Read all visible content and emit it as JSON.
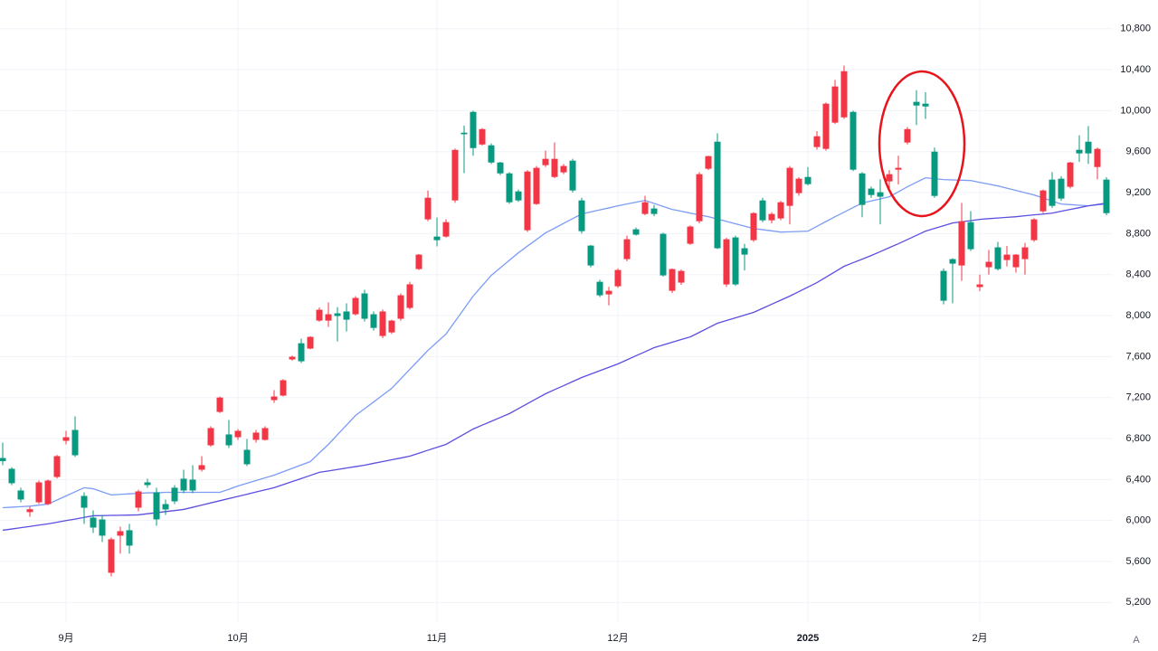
{
  "chart_data": {
    "type": "candlestick",
    "up_color": "#f23645",
    "down_color": "#089981",
    "grid": true,
    "categories": [
      null,
      null,
      null,
      null,
      null,
      null,
      null,
      "9月",
      null,
      null,
      null,
      null,
      null,
      null,
      null,
      null,
      null,
      null,
      null,
      null,
      null,
      null,
      null,
      null,
      null,
      null,
      "10月",
      null,
      null,
      null,
      null,
      null,
      null,
      null,
      null,
      null,
      null,
      null,
      null,
      null,
      null,
      null,
      null,
      null,
      null,
      null,
      null,
      null,
      "11月",
      null,
      null,
      null,
      null,
      null,
      null,
      null,
      null,
      null,
      null,
      null,
      null,
      null,
      null,
      null,
      null,
      null,
      null,
      null,
      "12月",
      null,
      null,
      null,
      null,
      null,
      null,
      null,
      null,
      null,
      null,
      null,
      null,
      null,
      null,
      null,
      null,
      null,
      null,
      null,
      null,
      "2025",
      null,
      null,
      null,
      null,
      null,
      null,
      null,
      null,
      null,
      null,
      null,
      null,
      null,
      null,
      null,
      null,
      null,
      null,
      "2月",
      null,
      null,
      null,
      null,
      null,
      null,
      null,
      null,
      null,
      null,
      null,
      null,
      null,
      null
    ],
    "open": [
      6610,
      6505,
      6293,
      6082,
      6178,
      6160,
      6425,
      6778,
      6884,
      6240,
      6028,
      6010,
      5490,
      5852,
      5905,
      6125,
      6372,
      6275,
      6160,
      6320,
      6408,
      6399,
      6496,
      6734,
      7060,
      6840,
      6813,
      6690,
      6787,
      6787,
      7175,
      7219,
      7572,
      7730,
      7678,
      7951,
      7951,
      8022,
      8040,
      8013,
      8216,
      8013,
      7801,
      7836,
      7969,
      8075,
      8454,
      8939,
      8771,
      8771,
      9124,
      9785,
      9988,
      9670,
      9662,
      9494,
      9388,
      9212,
      8833,
      9089,
      9468,
      9353,
      9398,
      9512,
      9124,
      8683,
      8330,
      8207,
      8286,
      8551,
      8842,
      8992,
      9045,
      8798,
      8242,
      8322,
      8701,
      8921,
      9433,
      9697,
      8304,
      8763,
      8657,
      8736,
      9124,
      8930,
      8948,
      9071,
      9195,
      9353,
      9645,
      9627,
      9883,
      9935,
      9988,
      9388,
      9239,
      9204,
      9310,
      9424,
      9689,
      10086,
      10068,
      9600,
      8436,
      8551,
      8489,
      8912,
      8278,
      8472,
      8666,
      8542,
      8472,
      8551,
      8736,
      9018,
      9327,
      9336,
      9257,
      9618,
      9697,
      9450,
      9327
    ],
    "high": [
      6760,
      6520,
      6320,
      6135,
      6390,
      6400,
      6640,
      6875,
      7016,
      6275,
      6099,
      6055,
      5835,
      5940,
      5967,
      6300,
      6408,
      6320,
      6205,
      6345,
      6496,
      6540,
      6628,
      6920,
      7210,
      6981,
      6893,
      6796,
      6884,
      6920,
      7272,
      7380,
      7610,
      7775,
      7800,
      8080,
      8128,
      8083,
      8119,
      8190,
      8252,
      8040,
      8060,
      7960,
      8216,
      8330,
      8600,
      9220,
      8957,
      8940,
      9630,
      9855,
      10000,
      9830,
      9680,
      9500,
      9400,
      9230,
      9420,
      9460,
      9610,
      9690,
      9480,
      9530,
      9150,
      8690,
      8350,
      8280,
      8460,
      8780,
      8860,
      9170,
      9080,
      8810,
      8460,
      8450,
      8880,
      9400,
      9560,
      9780,
      8760,
      8780,
      8700,
      9010,
      9150,
      9010,
      9120,
      9460,
      9350,
      9450,
      9800,
      10080,
      10300,
      10440,
      10000,
      9400,
      9260,
      9330,
      9420,
      9560,
      9840,
      10200,
      10180,
      9640,
      8460,
      8560,
      9100,
      9020,
      8400,
      8640,
      8720,
      8680,
      8600,
      8710,
      8950,
      9230,
      9400,
      9360,
      9500,
      9760,
      9850,
      9640,
      9350
    ],
    "low": [
      6540,
      6345,
      6178,
      6037,
      6160,
      6150,
      6410,
      6743,
      6620,
      5967,
      5878,
      5790,
      5455,
      5676,
      5676,
      6090,
      6320,
      5949,
      6055,
      6160,
      6266,
      6266,
      6478,
      6720,
      7050,
      6708,
      6787,
      6531,
      6760,
      6780,
      7148,
      7210,
      7560,
      7537,
      7670,
      7940,
      7890,
      7748,
      7845,
      8000,
      7942,
      7854,
      7780,
      7820,
      7950,
      8060,
      8445,
      8920,
      8675,
      8760,
      9100,
      9390,
      9560,
      9660,
      9480,
      9370,
      9090,
      9110,
      8815,
      9080,
      9450,
      9340,
      9380,
      9200,
      8800,
      8470,
      8180,
      8100,
      8270,
      8530,
      8780,
      8980,
      8970,
      8380,
      8220,
      8300,
      8690,
      8900,
      9420,
      8650,
      8280,
      8290,
      8440,
      8720,
      8910,
      8900,
      8930,
      8890,
      9170,
      9270,
      9620,
      9610,
      9870,
      9920,
      9410,
      8960,
      9150,
      8890,
      9220,
      9280,
      9670,
      9860,
      9920,
      9150,
      8110,
      8120,
      8340,
      8630,
      8240,
      8400,
      8440,
      8480,
      8420,
      8400,
      8720,
      9000,
      9050,
      9120,
      9240,
      9500,
      9480,
      9330,
      8980
    ],
    "close": [
      6580,
      6364,
      6205,
      6110,
      6372,
      6390,
      6628,
      6813,
      6637,
      6125,
      5931,
      5852,
      5817,
      5896,
      5755,
      6284,
      6346,
      6011,
      6108,
      6187,
      6293,
      6293,
      6540,
      6902,
      7200,
      6734,
      6875,
      6549,
      6858,
      6902,
      7210,
      7369,
      7598,
      7554,
      7792,
      8057,
      8013,
      7996,
      7960,
      8172,
      7969,
      7880,
      8040,
      7951,
      8198,
      8305,
      8595,
      9150,
      8736,
      8912,
      9617,
      9770,
      9635,
      9820,
      9494,
      9388,
      9106,
      9124,
      9406,
      9442,
      9530,
      9530,
      9460,
      9221,
      8824,
      8489,
      8198,
      8242,
      8445,
      8745,
      8790,
      9106,
      8992,
      8392,
      8454,
      8436,
      8869,
      9380,
      9556,
      8657,
      8745,
      8304,
      8595,
      9000,
      8930,
      8992,
      9106,
      9442,
      9336,
      9283,
      9750,
      10068,
      10236,
      10385,
      9424,
      9080,
      9177,
      9160,
      9380,
      9442,
      9820,
      10050,
      10041,
      9168,
      8145,
      8507,
      8921,
      8648,
      8304,
      8525,
      8454,
      8595,
      8595,
      8666,
      8939,
      9221,
      9071,
      9142,
      9494,
      9583,
      9583,
      9627,
      9000
    ],
    "lines": [
      {
        "color": "#7c9cf5",
        "values": [
          6125,
          6130,
          6135,
          6140,
          6150,
          6160,
          6200,
          6240,
          6280,
          6320,
          6310,
          6280,
          6250,
          6255,
          6260,
          6265,
          6270,
          6270,
          6275,
          6275,
          6275,
          6275,
          6275,
          6275,
          6275,
          6305,
          6337,
          6363,
          6390,
          6416,
          6443,
          6476,
          6509,
          6542,
          6575,
          6660,
          6743,
          6837,
          6931,
          7025,
          7091,
          7157,
          7224,
          7290,
          7383,
          7476,
          7568,
          7660,
          7740,
          7820,
          7943,
          8067,
          8190,
          8291,
          8392,
          8466,
          8540,
          8613,
          8678,
          8742,
          8807,
          8853,
          8900,
          8946,
          8992,
          9012,
          9032,
          9051,
          9071,
          9089,
          9107,
          9124,
          9095,
          9065,
          9036,
          9018,
          9000,
          8983,
          8965,
          8942,
          8919,
          8896,
          8873,
          8850,
          8838,
          8827,
          8815,
          8818,
          8821,
          8824,
          8871,
          8918,
          8965,
          9009,
          9054,
          9098,
          9119,
          9139,
          9160,
          9208,
          9257,
          9301,
          9345,
          9336,
          9327,
          9324,
          9321,
          9318,
          9300,
          9283,
          9265,
          9243,
          9221,
          9199,
          9177,
          9148,
          9118,
          9089,
          9083,
          9077,
          9071,
          9080,
          9089
        ]
      },
      {
        "color": "#5b4ee0",
        "values": [
          5905,
          5917,
          5930,
          5942,
          5955,
          5967,
          5983,
          5999,
          6014,
          6030,
          6046,
          6048,
          6050,
          6051,
          6053,
          6055,
          6066,
          6076,
          6087,
          6097,
          6108,
          6129,
          6150,
          6172,
          6193,
          6214,
          6235,
          6256,
          6278,
          6299,
          6320,
          6350,
          6380,
          6410,
          6440,
          6470,
          6484,
          6498,
          6512,
          6526,
          6540,
          6558,
          6575,
          6593,
          6610,
          6628,
          6657,
          6686,
          6714,
          6743,
          6793,
          6843,
          6893,
          6931,
          6968,
          7006,
          7043,
          7092,
          7140,
          7189,
          7237,
          7277,
          7316,
          7356,
          7396,
          7429,
          7462,
          7495,
          7528,
          7568,
          7608,
          7647,
          7687,
          7713,
          7740,
          7766,
          7792,
          7836,
          7881,
          7925,
          7952,
          7978,
          8005,
          8031,
          8071,
          8111,
          8150,
          8190,
          8234,
          8278,
          8322,
          8375,
          8428,
          8481,
          8516,
          8551,
          8586,
          8624,
          8663,
          8701,
          8742,
          8783,
          8824,
          8851,
          8877,
          8904,
          8916,
          8927,
          8939,
          8946,
          8952,
          8959,
          8965,
          8974,
          8983,
          8991,
          9000,
          9018,
          9036,
          9053,
          9071,
          9085,
          9098
        ]
      }
    ],
    "ylim": [
      5000,
      11080
    ],
    "yticks": [
      {
        "value": 5200,
        "label": "5,200"
      },
      {
        "value": 5600,
        "label": "5,600"
      },
      {
        "value": 6000,
        "label": "6,000"
      },
      {
        "value": 6400,
        "label": "6,400"
      },
      {
        "value": 6800,
        "label": "6,800"
      },
      {
        "value": 7200,
        "label": "7,200"
      },
      {
        "value": 7600,
        "label": "7,600"
      },
      {
        "value": 8000,
        "label": "8,000"
      },
      {
        "value": 8400,
        "label": "8,400"
      },
      {
        "value": 8800,
        "label": "8,800"
      },
      {
        "value": 9200,
        "label": "9,200"
      },
      {
        "value": 9600,
        "label": "9,600"
      },
      {
        "value": 10000,
        "label": "10,000"
      },
      {
        "value": 10400,
        "label": "10,400"
      },
      {
        "value": 10800,
        "label": "10,800"
      }
    ],
    "auto_scale_button": "A"
  }
}
